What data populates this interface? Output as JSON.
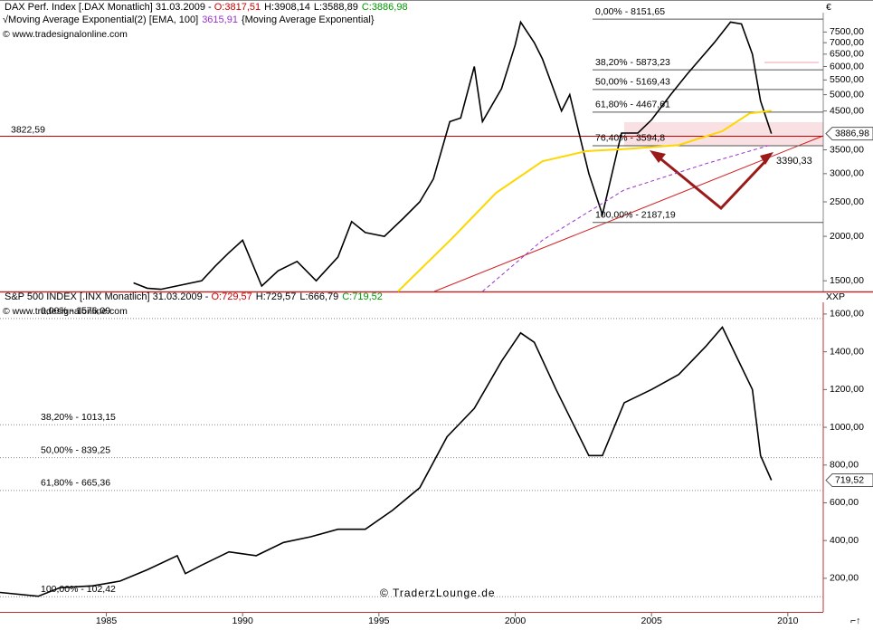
{
  "chart_data": [
    {
      "type": "line",
      "title": {
        "prefix": "DAX Perf. Index [.DAX  Monatlich] 31.03.2009 - ",
        "open": "O:3817,51",
        "high": "H:3908,14",
        "low": "L:3588,89",
        "close": "C:3886,98"
      },
      "legend": {
        "mark": "√",
        "note": "{Moving Average Exponential}"
      },
      "source": "© www.tradesignalonline.com",
      "currency": "€",
      "log_scale": true,
      "xlim": [
        1981.1,
        2011.3
      ],
      "ylim": [
        1400,
        8500
      ],
      "yticks": [
        {
          "value": 7500,
          "label": "7500,00"
        },
        {
          "value": 7000,
          "label": "7000,00"
        },
        {
          "value": 6500,
          "label": "6500,00"
        },
        {
          "value": 6000,
          "label": "6000,00"
        },
        {
          "value": 5500,
          "label": "5500,00"
        },
        {
          "value": 5000,
          "label": "5000,00"
        },
        {
          "value": 4500,
          "label": "4500,00"
        },
        {
          "value": 3500,
          "label": "3500,00"
        },
        {
          "value": 3000,
          "label": "3000,00"
        },
        {
          "value": 2500,
          "label": "2500,00"
        },
        {
          "value": 2000,
          "label": "2000,00"
        },
        {
          "value": 1500,
          "label": "1500,00"
        }
      ],
      "series": [
        {
          "color": "#000000",
          "x": [
            1986.0,
            1986.5,
            1987.0,
            1988.5,
            1989.0,
            1989.5,
            1990.0,
            1990.7,
            1991.3,
            1992.0,
            1992.7,
            1993.5,
            1994.0,
            1994.5,
            1995.2,
            1995.9,
            1996.5,
            1997.0,
            1997.6,
            1998.0,
            1998.5,
            1998.8,
            1999.5,
            2000.0,
            2000.2,
            2000.7,
            2001.0,
            2001.7,
            2002.0,
            2002.7,
            2003.2,
            2003.9,
            2004.5,
            2005.0,
            2005.7,
            2006.3,
            2007.3,
            2007.9,
            2008.3,
            2008.7,
            2009.0,
            2009.4
          ],
          "values": [
            1480,
            1430,
            1420,
            1500,
            1650,
            1800,
            1950,
            1450,
            1600,
            1700,
            1500,
            1750,
            2200,
            2050,
            2000,
            2250,
            2500,
            2900,
            4200,
            4300,
            6000,
            4200,
            5200,
            6900,
            8000,
            7000,
            6300,
            4500,
            5000,
            3000,
            2300,
            3900,
            3900,
            4250,
            5000,
            5700,
            7000,
            8000,
            7900,
            6500,
            4800,
            3886.98
          ]
        },
        {
          "color": "#ffd700",
          "x": [
            1995.7,
            1997.7,
            1999.3,
            2001.0,
            2002.6,
            2004.3,
            2006.0,
            2007.6,
            2008.6,
            2009.4
          ],
          "values": [
            1400,
            1980,
            2650,
            3250,
            3470,
            3530,
            3610,
            3950,
            4430,
            4510
          ]
        },
        {
          "name": "Moving Average Exponential(2) [EMA, 100]",
          "color": "#9933cc",
          "dashed": true,
          "x": [
            1998.8,
            2001.0,
            2004.0,
            2007.0,
            2009.4
          ],
          "values": [
            1400,
            1950,
            2700,
            3200,
            3615.91
          ],
          "last_label": "3615,91"
        }
      ],
      "levels": [
        {
          "value": 8151.65,
          "label": "0,00% - 8151,65"
        },
        {
          "value": 5873.23,
          "label": "38,20% - 5873,23"
        },
        {
          "value": 5169.43,
          "label": "50,00% - 5169,43"
        },
        {
          "value": 4467.61,
          "label": "61,80% - 4467,61"
        },
        {
          "value": 3594.8,
          "label": "76,40% - 3594,8"
        },
        {
          "value": 2187.19,
          "label": "100,00% - 2187,19"
        }
      ],
      "hline": {
        "value": 3822.59,
        "label": "3822,59",
        "color": "#cc0000"
      },
      "annotation": {
        "value": 3390.33,
        "label": "3390,33",
        "color": "#cc0000"
      },
      "last": {
        "value": 3886.98,
        "label": "3886,98"
      }
    },
    {
      "type": "line",
      "title": {
        "prefix": "S&P 500 INDEX [.INX  Monatlich] 31.03.2009 - ",
        "open": "O:729,57",
        "high": "H:729,57",
        "low": "L:666,79",
        "close": "C:719,52"
      },
      "source": "© www.tradesignalonline.com",
      "watermark": "© TraderzLounge.de",
      "currency": "XXP",
      "log_scale": false,
      "xlim": [
        1981.1,
        2011.3
      ],
      "xticks": [
        1985,
        1990,
        1995,
        2000,
        2005,
        2010
      ],
      "ylim": [
        22,
        1662
      ],
      "yticks": [
        {
          "value": 1600,
          "label": "1600,00"
        },
        {
          "value": 1400,
          "label": "1400,00"
        },
        {
          "value": 1200,
          "label": "1200,00"
        },
        {
          "value": 1000,
          "label": "1000,00"
        },
        {
          "value": 800,
          "label": "800,00"
        },
        {
          "value": 600,
          "label": "600,00"
        },
        {
          "value": 400,
          "label": "400,00"
        },
        {
          "value": 200,
          "label": "200,00"
        }
      ],
      "series": [
        {
          "color": "#000000",
          "x": [
            1981.1,
            1982.5,
            1983.3,
            1984.5,
            1985.5,
            1986.5,
            1987.6,
            1987.9,
            1988.5,
            1989.5,
            1990.5,
            1991.5,
            1992.5,
            1993.5,
            1994.5,
            1995.5,
            1996.5,
            1997.5,
            1998.5,
            1999.5,
            2000.2,
            2000.7,
            2001.5,
            2002.7,
            2003.2,
            2004.0,
            2005.0,
            2006.0,
            2007.0,
            2007.6,
            2008.2,
            2008.7,
            2009.0,
            2009.4
          ],
          "values": [
            125,
            105,
            150,
            160,
            185,
            245,
            320,
            225,
            270,
            340,
            320,
            390,
            420,
            460,
            460,
            560,
            680,
            950,
            1100,
            1350,
            1500,
            1450,
            1200,
            850,
            850,
            1130,
            1200,
            1280,
            1430,
            1530,
            1350,
            1200,
            850,
            719.52
          ]
        }
      ],
      "levels": [
        {
          "value": 1576.09,
          "label": "0,00% - 1576,09"
        },
        {
          "value": 1013.15,
          "label": "38,20% - 1013,15"
        },
        {
          "value": 839.25,
          "label": "50,00% - 839,25"
        },
        {
          "value": 665.36,
          "label": "61,80% - 665,36"
        },
        {
          "value": 102.42,
          "label": "100,00% - 102,42"
        }
      ],
      "last": {
        "value": 719.52,
        "label": "719,52"
      }
    }
  ]
}
